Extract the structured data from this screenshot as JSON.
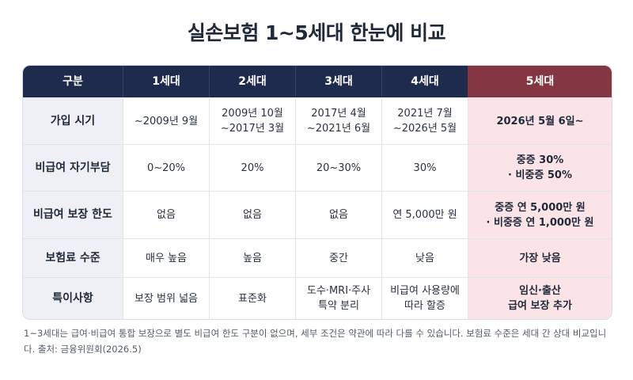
{
  "title": "실손보험 1~5세대 한눈에 비교",
  "table": {
    "headers": [
      "구분",
      "1세대",
      "2세대",
      "3세대",
      "4세대",
      "5세대"
    ],
    "rows": [
      {
        "label": "가입 시기",
        "gen1": "~2009년 9월",
        "gen2": "2009년 10월\n~2017년 3월",
        "gen3": "2017년 4월\n~2021년 6월",
        "gen4": "2021년 7월\n~2026년 5월",
        "gen5": "2026년 5월 6일~"
      },
      {
        "label": "비급여 자기부담",
        "gen1": "0~20%",
        "gen2": "20%",
        "gen3": "20~30%",
        "gen4": "30%",
        "gen5": "중증 30%\n· 비중증 50%"
      },
      {
        "label": "비급여 보장 한도",
        "gen1": "없음",
        "gen2": "없음",
        "gen3": "없음",
        "gen4": "연 5,000만 원",
        "gen5": "중증 연 5,000만 원\n· 비중증 연 1,000만 원"
      },
      {
        "label": "보험료 수준",
        "gen1": "매우 높음",
        "gen2": "높음",
        "gen3": "중간",
        "gen4": "낮음",
        "gen5": "가장 낮음"
      },
      {
        "label": "특이사항",
        "gen1": "보장 범위 넓음",
        "gen2": "표준화",
        "gen3": "도수·MRI·주사\n특약 분리",
        "gen4": "비급여 사용량에\n따라 할증",
        "gen5": "임신·출산\n급여 보장 추가"
      }
    ]
  },
  "footnote": "1~3세대는 급여·비급여 통합 보장으로 별도 비급여 한도 구분이 없으며, 세부 조건은 약관에 따라 다를 수 있습니다. 보험료 수준은 세대 간 상대 비교입니다. 출처: 금융위원회(2026.5)",
  "colors": {
    "header_bg": "#1f2b4d",
    "gen5_header_bg": "#843642",
    "gen5_cell_bg": "#fbe4e8",
    "row_label_bg": "#eef0f5"
  }
}
